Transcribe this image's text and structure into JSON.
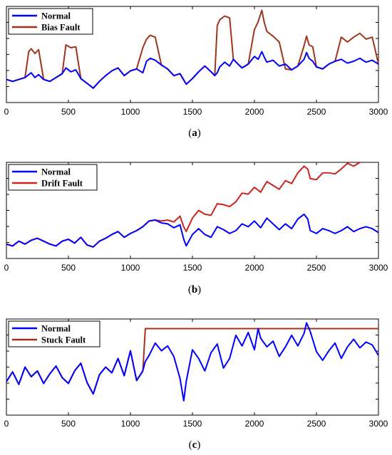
{
  "chart_data": [
    {
      "type": "line",
      "caption_open": "(",
      "caption_letter": "a",
      "caption_close": ")",
      "xlim": [
        0,
        3000
      ],
      "ylim": [
        0,
        10
      ],
      "xticks": [
        0,
        500,
        1000,
        1500,
        2000,
        2500,
        3000
      ],
      "xtick_labels": [
        "0",
        "500",
        "1000",
        "1500",
        "2000",
        "2500",
        "3000"
      ],
      "grid": false,
      "legend": "top-left",
      "series": [
        {
          "name": "Normal",
          "color": "#0000ff",
          "x": [
            0,
            50,
            100,
            150,
            180,
            200,
            230,
            260,
            300,
            350,
            400,
            450,
            480,
            520,
            560,
            600,
            650,
            700,
            750,
            800,
            850,
            900,
            950,
            1000,
            1050,
            1100,
            1130,
            1160,
            1200,
            1250,
            1300,
            1350,
            1400,
            1450,
            1500,
            1550,
            1600,
            1650,
            1680,
            1700,
            1720,
            1760,
            1800,
            1830,
            1860,
            1900,
            1950,
            2000,
            2030,
            2060,
            2080,
            2100,
            2150,
            2200,
            2250,
            2300,
            2350,
            2400,
            2420,
            2440,
            2470,
            2500,
            2550,
            2600,
            2650,
            2700,
            2750,
            2800,
            2850,
            2900,
            2950,
            3000
          ],
          "y": [
            2.4,
            2.2,
            2.4,
            2.6,
            2.9,
            3.1,
            2.6,
            2.9,
            2.4,
            2.2,
            2.6,
            3.0,
            3.6,
            3.2,
            3.4,
            2.5,
            2.0,
            1.5,
            2.2,
            2.8,
            3.3,
            3.6,
            2.8,
            3.3,
            3.5,
            3.1,
            4.3,
            4.6,
            4.4,
            3.9,
            3.5,
            2.8,
            3.0,
            1.9,
            2.5,
            3.2,
            3.8,
            3.2,
            2.8,
            3.1,
            3.7,
            4.2,
            3.8,
            4.5,
            4.1,
            3.6,
            4.0,
            4.8,
            4.5,
            5.3,
            4.7,
            4.2,
            4.4,
            3.8,
            4.0,
            3.4,
            3.8,
            4.5,
            5.2,
            4.6,
            4.3,
            3.7,
            3.5,
            4.0,
            4.3,
            4.5,
            4.1,
            4.3,
            4.6,
            4.2,
            4.4,
            4.0
          ]
        },
        {
          "name": "Bias Fault",
          "color": "#a0331a",
          "x": [
            0,
            50,
            100,
            150,
            180,
            200,
            230,
            260,
            300,
            350,
            400,
            450,
            480,
            520,
            560,
            600,
            650,
            700,
            750,
            800,
            850,
            900,
            950,
            1000,
            1050,
            1100,
            1130,
            1160,
            1200,
            1250,
            1300,
            1350,
            1400,
            1450,
            1500,
            1550,
            1600,
            1650,
            1680,
            1700,
            1720,
            1760,
            1800,
            1830,
            1860,
            1900,
            1950,
            2000,
            2030,
            2060,
            2080,
            2100,
            2150,
            2200,
            2250,
            2300,
            2350,
            2400,
            2420,
            2440,
            2470,
            2500,
            2550,
            2600,
            2650,
            2700,
            2750,
            2800,
            2850,
            2900,
            2950,
            3000
          ],
          "y": [
            2.4,
            2.2,
            2.4,
            2.6,
            5.3,
            5.6,
            5.1,
            5.5,
            2.4,
            2.2,
            2.6,
            3.0,
            6.0,
            5.7,
            5.8,
            2.5,
            2.0,
            1.5,
            2.2,
            2.8,
            3.3,
            3.6,
            2.8,
            3.3,
            3.5,
            5.7,
            6.6,
            7.0,
            6.8,
            3.9,
            3.5,
            2.8,
            3.0,
            1.9,
            2.5,
            3.2,
            3.8,
            3.2,
            2.8,
            8.0,
            8.6,
            9.0,
            8.8,
            4.5,
            4.1,
            3.6,
            4.0,
            7.6,
            8.4,
            9.6,
            8.3,
            7.4,
            6.9,
            6.3,
            3.5,
            3.4,
            3.8,
            5.9,
            6.9,
            6.0,
            5.8,
            3.7,
            3.5,
            4.0,
            4.3,
            6.8,
            6.3,
            6.8,
            7.2,
            6.6,
            6.8,
            4.0
          ]
        }
      ]
    },
    {
      "type": "line",
      "caption_open": "(",
      "caption_letter": "b",
      "caption_close": ")",
      "xlim": [
        0,
        3000
      ],
      "ylim": [
        0,
        10
      ],
      "xticks": [
        0,
        500,
        1000,
        1500,
        2000,
        2500,
        3000
      ],
      "xtick_labels": [
        "0",
        "500",
        "1000",
        "1500",
        "2000",
        "2500",
        "3000"
      ],
      "grid": false,
      "legend": "top-left",
      "series": [
        {
          "name": "Normal",
          "color": "#0000ff",
          "x": [
            0,
            50,
            100,
            150,
            200,
            250,
            300,
            350,
            400,
            450,
            500,
            550,
            600,
            650,
            700,
            750,
            800,
            850,
            900,
            950,
            1000,
            1050,
            1100,
            1150,
            1200,
            1250,
            1300,
            1350,
            1400,
            1430,
            1450,
            1500,
            1550,
            1600,
            1650,
            1700,
            1750,
            1800,
            1850,
            1900,
            1950,
            2000,
            2050,
            2100,
            2150,
            2200,
            2250,
            2300,
            2350,
            2400,
            2430,
            2450,
            2500,
            2550,
            2600,
            2650,
            2700,
            2750,
            2800,
            2850,
            2900,
            2950,
            3000
          ],
          "y": [
            1.5,
            1.3,
            1.8,
            1.5,
            1.9,
            2.1,
            1.8,
            1.5,
            1.3,
            1.8,
            2.0,
            1.6,
            2.2,
            1.4,
            1.2,
            1.8,
            2.1,
            2.5,
            2.8,
            2.2,
            2.6,
            2.9,
            3.3,
            3.9,
            4.0,
            3.7,
            3.6,
            3.2,
            3.5,
            2.0,
            1.3,
            2.5,
            3.1,
            2.5,
            2.2,
            3.3,
            3.0,
            2.6,
            2.9,
            3.6,
            3.3,
            3.9,
            3.2,
            4.2,
            3.6,
            3.0,
            3.6,
            3.1,
            4.1,
            4.6,
            4.1,
            2.9,
            2.6,
            3.1,
            2.9,
            2.6,
            2.9,
            3.3,
            2.8,
            3.1,
            3.3,
            3.1,
            2.7
          ]
        },
        {
          "name": "Drift Fault",
          "color": "#cc2222",
          "x": [
            0,
            50,
            100,
            150,
            200,
            250,
            300,
            350,
            400,
            450,
            500,
            550,
            600,
            650,
            700,
            750,
            800,
            850,
            900,
            950,
            1000,
            1050,
            1100,
            1150,
            1200,
            1250,
            1300,
            1350,
            1400,
            1430,
            1450,
            1500,
            1550,
            1600,
            1650,
            1700,
            1750,
            1800,
            1850,
            1900,
            1950,
            2000,
            2050,
            2100,
            2150,
            2200,
            2250,
            2300,
            2350,
            2400,
            2430,
            2450,
            2500,
            2550,
            2600,
            2650,
            2700,
            2750,
            2800,
            2850,
            2900,
            2950,
            3000
          ],
          "y": [
            1.5,
            1.3,
            1.8,
            1.5,
            1.9,
            2.1,
            1.8,
            1.5,
            1.3,
            1.8,
            2.0,
            1.6,
            2.2,
            1.4,
            1.2,
            1.8,
            2.1,
            2.5,
            2.8,
            2.2,
            2.6,
            2.9,
            3.3,
            3.9,
            4.0,
            3.9,
            4.0,
            3.8,
            4.4,
            3.3,
            2.8,
            4.2,
            5.0,
            4.6,
            4.5,
            5.7,
            5.6,
            5.4,
            5.9,
            6.8,
            6.7,
            7.4,
            6.9,
            8.0,
            7.6,
            7.2,
            8.1,
            7.8,
            8.9,
            9.6,
            9.3,
            8.3,
            8.2,
            8.9,
            8.9,
            8.8,
            9.3,
            9.9,
            9.6,
            10.0,
            10.4,
            10.4,
            10.2
          ]
        }
      ]
    },
    {
      "type": "line",
      "caption_open": "(",
      "caption_letter": "c",
      "caption_close": ")",
      "xlim": [
        0,
        3000
      ],
      "ylim": [
        0,
        10
      ],
      "xticks": [
        0,
        500,
        1000,
        1500,
        2000,
        2500,
        3000
      ],
      "xtick_labels": [
        "0",
        "500",
        "1000",
        "1500",
        "2000",
        "2500",
        "3000"
      ],
      "grid": false,
      "legend": "top-left",
      "series": [
        {
          "name": "Normal",
          "color": "#0000ff",
          "x": [
            0,
            50,
            100,
            150,
            200,
            250,
            300,
            350,
            400,
            450,
            500,
            550,
            600,
            650,
            700,
            750,
            800,
            850,
            900,
            950,
            1000,
            1050,
            1100,
            1120,
            1150,
            1200,
            1250,
            1300,
            1350,
            1400,
            1430,
            1450,
            1500,
            1550,
            1600,
            1650,
            1700,
            1750,
            1800,
            1850,
            1900,
            1950,
            2000,
            2030,
            2050,
            2100,
            2150,
            2200,
            2250,
            2300,
            2350,
            2400,
            2420,
            2450,
            2500,
            2550,
            2600,
            2650,
            2700,
            2750,
            2800,
            2850,
            2900,
            2950,
            3000
          ],
          "y": [
            3.5,
            4.5,
            3.2,
            5.0,
            4.0,
            4.6,
            3.3,
            4.3,
            5.1,
            3.9,
            3.3,
            4.6,
            5.4,
            3.4,
            2.2,
            4.2,
            5.0,
            4.4,
            5.9,
            4.1,
            6.7,
            3.6,
            4.6,
            5.6,
            6.2,
            7.5,
            6.7,
            7.2,
            6.1,
            3.8,
            1.5,
            3.5,
            6.8,
            5.9,
            4.6,
            6.5,
            7.4,
            4.9,
            5.9,
            8.3,
            7.2,
            8.6,
            6.8,
            9.0,
            8.0,
            7.1,
            7.7,
            6.1,
            7.1,
            8.3,
            7.2,
            8.5,
            9.6,
            8.7,
            6.6,
            5.7,
            6.7,
            7.5,
            5.9,
            7.1,
            7.9,
            7.0,
            7.6,
            7.3,
            6.2
          ]
        },
        {
          "name": "Stuck Fault",
          "color": "#a0331a",
          "x": [
            0,
            50,
            100,
            150,
            200,
            250,
            300,
            350,
            400,
            450,
            500,
            550,
            600,
            650,
            700,
            750,
            800,
            850,
            900,
            950,
            1000,
            1050,
            1100,
            1120,
            1150,
            1200,
            1250,
            1300,
            1350,
            1400,
            1430,
            1450,
            1500,
            1550,
            1600,
            1650,
            1700,
            1750,
            1800,
            1850,
            1900,
            1950,
            2000,
            2030,
            2050,
            2100,
            2150,
            2200,
            2250,
            2300,
            2350,
            2400,
            2420,
            2450,
            2500,
            2550,
            2600,
            2650,
            2700,
            2750,
            2800,
            2850,
            2900,
            2950,
            3000
          ],
          "y": [
            3.5,
            4.5,
            3.2,
            5.0,
            4.0,
            4.6,
            3.3,
            4.3,
            5.1,
            3.9,
            3.3,
            4.6,
            5.4,
            3.4,
            2.2,
            4.2,
            5.0,
            4.4,
            5.9,
            4.1,
            6.7,
            3.6,
            4.6,
            9.0,
            9.0,
            9.0,
            9.0,
            9.0,
            9.0,
            9.0,
            9.0,
            9.0,
            9.0,
            9.0,
            9.0,
            9.0,
            9.0,
            9.0,
            9.0,
            9.0,
            9.0,
            9.0,
            9.0,
            9.0,
            9.0,
            9.0,
            9.0,
            9.0,
            9.0,
            9.0,
            9.0,
            9.0,
            9.0,
            9.0,
            9.0,
            9.0,
            9.0,
            9.0,
            9.0,
            9.0,
            9.0,
            9.0,
            9.0,
            9.0,
            9.0
          ]
        }
      ]
    }
  ]
}
